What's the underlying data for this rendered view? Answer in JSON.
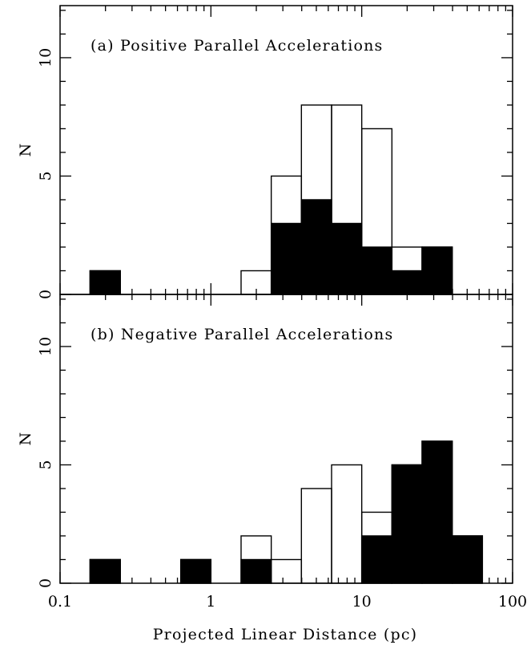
{
  "chart_data": [
    {
      "type": "bar",
      "title": "(a) Positive Parallel Accelerations",
      "xlabel": "",
      "ylabel": "N",
      "xscale": "log",
      "xlim": [
        0.1,
        100
      ],
      "ylim": [
        0,
        12.2
      ],
      "yticks": [
        "0",
        "5",
        "10"
      ],
      "bin_edges": [
        0.158,
        0.251,
        0.398,
        0.631,
        1.0,
        1.585,
        2.512,
        3.981,
        6.31,
        10.0,
        15.85,
        25.12,
        39.81,
        63.1
      ],
      "series": [
        {
          "style": "open",
          "values": [
            1,
            0,
            0,
            0,
            0,
            1,
            5,
            8,
            8,
            7,
            2,
            2,
            0
          ]
        },
        {
          "style": "filled",
          "values": [
            1,
            0,
            0,
            0,
            0,
            0,
            3,
            4,
            3,
            2,
            1,
            2,
            0
          ]
        }
      ]
    },
    {
      "type": "bar",
      "title": "(b) Negative Parallel Accelerations",
      "xlabel": "Projected Linear Distance (pc)",
      "ylabel": "N",
      "xscale": "log",
      "xlim": [
        0.1,
        100
      ],
      "ylim": [
        0,
        12.2
      ],
      "yticks": [
        "0",
        "5",
        "10"
      ],
      "xticks": [
        "0.1",
        "1",
        "10",
        "100"
      ],
      "bin_edges": [
        0.158,
        0.251,
        0.398,
        0.631,
        1.0,
        1.585,
        2.512,
        3.981,
        6.31,
        10.0,
        15.85,
        25.12,
        39.81,
        63.1
      ],
      "series": [
        {
          "style": "open",
          "values": [
            1,
            0,
            0,
            1,
            0,
            2,
            1,
            4,
            5,
            3,
            5,
            6,
            2
          ]
        },
        {
          "style": "filled",
          "values": [
            1,
            0,
            0,
            1,
            0,
            1,
            0,
            0,
            0,
            2,
            5,
            6,
            2
          ]
        }
      ]
    }
  ]
}
